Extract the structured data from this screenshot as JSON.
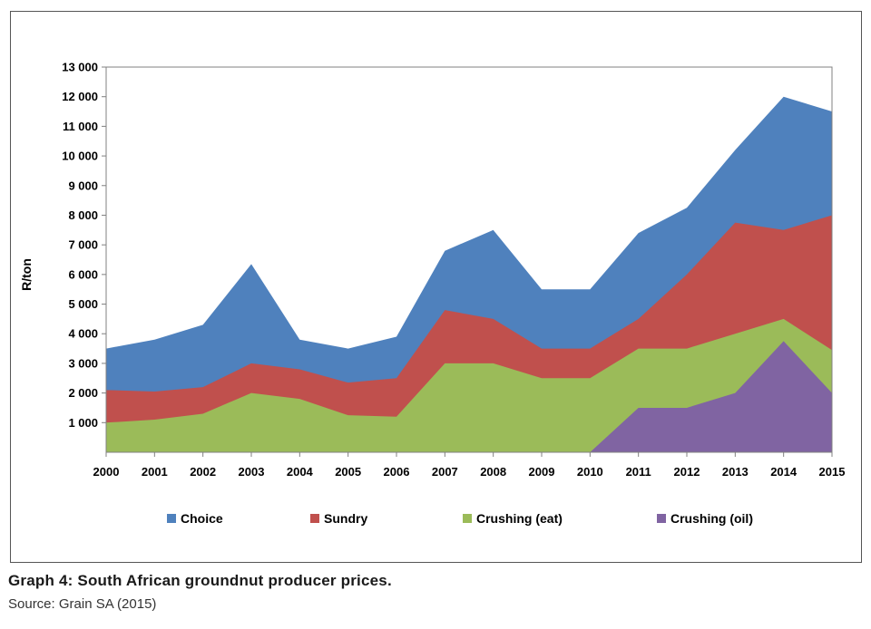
{
  "caption": {
    "title": "Graph 4: South African groundnut producer prices.",
    "source": "Source: Grain SA (2015)"
  },
  "chart_data": {
    "type": "area",
    "stacked": false,
    "x": [
      "2000",
      "2001",
      "2002",
      "2003",
      "2004",
      "2005",
      "2006",
      "2007",
      "2008",
      "2009",
      "2010",
      "2011",
      "2012",
      "2013",
      "2014",
      "2015"
    ],
    "ylabel": "R/ton",
    "ylim": [
      0,
      13000
    ],
    "yticks": [
      1000,
      2000,
      3000,
      4000,
      5000,
      6000,
      7000,
      8000,
      9000,
      10000,
      11000,
      12000,
      13000
    ],
    "ytick_labels": [
      "1 000",
      "2 000",
      "3 000",
      "4 000",
      "5 000",
      "6 000",
      "7 000",
      "8 000",
      "9 000",
      "10 000",
      "11 000",
      "12 000",
      "13 000"
    ],
    "grid": false,
    "legend_position": "bottom",
    "series": [
      {
        "name": "Choice",
        "color": "#4F81BD",
        "values": [
          3500,
          3800,
          4300,
          6350,
          3800,
          3500,
          3900,
          6800,
          7500,
          5500,
          5500,
          7400,
          8250,
          10200,
          12000,
          11500
        ]
      },
      {
        "name": "Sundry",
        "color": "#C0504D",
        "values": [
          2100,
          2050,
          2200,
          3000,
          2800,
          2350,
          2500,
          4800,
          4500,
          3500,
          3500,
          4500,
          6000,
          7750,
          7500,
          8000
        ]
      },
      {
        "name": "Crushing (eat)",
        "color": "#9BBB59",
        "values": [
          1000,
          1100,
          1300,
          2000,
          1800,
          1250,
          1200,
          3000,
          3000,
          2500,
          2500,
          3500,
          3500,
          4000,
          4500,
          3450
        ]
      },
      {
        "name": "Crushing (oil)",
        "color": "#8064A2",
        "values": [
          null,
          null,
          null,
          null,
          null,
          null,
          null,
          null,
          null,
          null,
          0,
          1500,
          1500,
          2000,
          3750,
          2000
        ]
      }
    ]
  }
}
